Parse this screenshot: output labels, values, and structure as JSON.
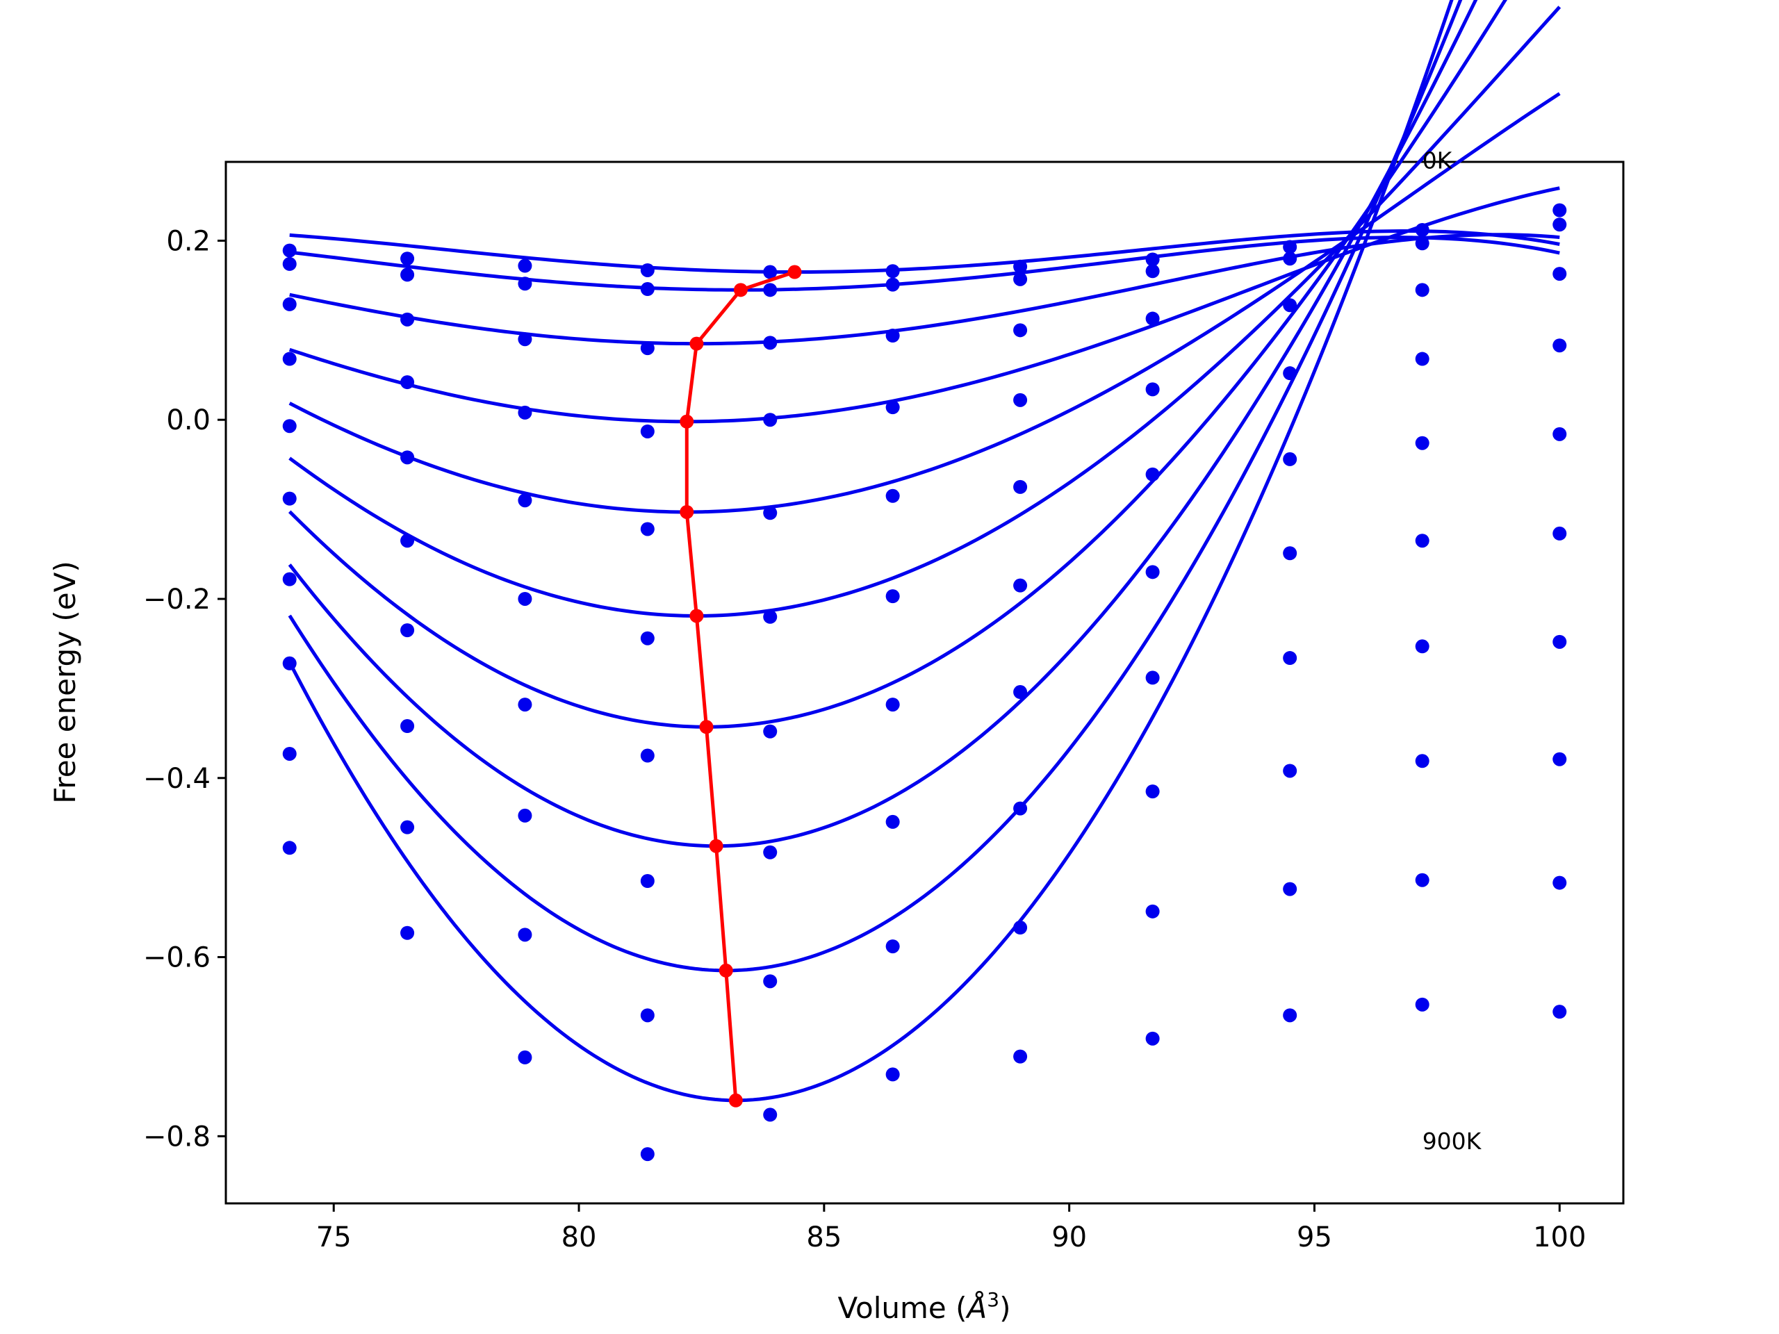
{
  "chart_data": {
    "type": "line",
    "title": "",
    "xlabel": "Volume (",
    "xlabel_unit": "Å",
    "xlabel_sup": "3",
    "xlabel_close": ")",
    "ylabel": "Free energy (eV)",
    "xlim": [
      72.8,
      101.3
    ],
    "ylim": [
      -0.875,
      0.288
    ],
    "xticks": [
      75,
      80,
      85,
      90,
      95,
      100
    ],
    "yticks": [
      0.2,
      0.0,
      -0.2,
      -0.4,
      -0.6,
      -0.8
    ],
    "xtick_labels": [
      "75",
      "80",
      "85",
      "90",
      "95",
      "100"
    ],
    "ytick_labels": [
      "0.2",
      "0.0",
      "−0.2",
      "−0.4",
      "−0.6",
      "−0.8"
    ],
    "annotations": [
      {
        "text": "0K",
        "x": 97.2,
        "y": 0.29
      },
      {
        "text": "900K",
        "x": 97.2,
        "y": -0.805
      }
    ],
    "grid": false,
    "legend": "none",
    "series_color": "#0000ee",
    "min_color": "#ff0000",
    "volumes": [
      74.1,
      76.5,
      78.9,
      81.4,
      83.9,
      86.4,
      89.0,
      91.7,
      94.5,
      97.2,
      100.0
    ],
    "series": [
      {
        "points": [
          0.189,
          0.18,
          0.172,
          0.167,
          0.165,
          0.166,
          0.171,
          0.179,
          0.193,
          0.212,
          0.234
        ],
        "fit": {
          "vmin": 84.4,
          "fmin": 0.165,
          "a": 0.00059,
          "b": 1.9e-06
        }
      },
      {
        "points": [
          0.174,
          0.162,
          0.152,
          0.146,
          0.145,
          0.151,
          0.157,
          0.166,
          0.18,
          0.197,
          0.218
        ],
        "fit": {
          "vmin": 83.3,
          "fmin": 0.145,
          "a": 0.00065,
          "b": 1.8e-06
        }
      },
      {
        "points": [
          0.129,
          0.112,
          0.09,
          0.08,
          0.086,
          0.094,
          0.1,
          0.113,
          0.128,
          0.145,
          0.163
        ],
        "fit": {
          "vmin": 82.4,
          "fmin": 0.085,
          "a": 0.00091,
          "b": 1.7e-06
        }
      },
      {
        "points": [
          0.068,
          0.042,
          0.008,
          -0.013,
          0.0,
          0.014,
          0.022,
          0.034,
          0.052,
          0.068,
          0.083
        ],
        "fit": {
          "vmin": 82.2,
          "fmin": -0.002,
          "a": 0.00133,
          "b": 1.6e-06
        }
      },
      {
        "points": [
          -0.007,
          -0.042,
          -0.09,
          -0.122,
          -0.104,
          -0.085,
          -0.075,
          -0.061,
          -0.044,
          -0.026,
          -0.016
        ],
        "fit": {
          "vmin": 82.2,
          "fmin": -0.103,
          "a": 0.00195,
          "b": 1.5e-06
        }
      },
      {
        "points": [
          -0.088,
          -0.135,
          -0.2,
          -0.244,
          -0.22,
          -0.197,
          -0.185,
          -0.17,
          -0.149,
          -0.135,
          -0.127
        ],
        "fit": {
          "vmin": 82.4,
          "fmin": -0.219,
          "a": 0.00266,
          "b": 1.5e-06
        }
      },
      {
        "points": [
          -0.178,
          -0.235,
          -0.318,
          -0.375,
          -0.348,
          -0.318,
          -0.304,
          -0.288,
          -0.266,
          -0.253,
          -0.248
        ],
        "fit": {
          "vmin": 82.6,
          "fmin": -0.343,
          "a": 0.00343,
          "b": 1.4e-06
        }
      },
      {
        "points": [
          -0.272,
          -0.342,
          -0.442,
          -0.515,
          -0.483,
          -0.449,
          -0.434,
          -0.415,
          -0.392,
          -0.381,
          -0.379
        ],
        "fit": {
          "vmin": 82.8,
          "fmin": -0.476,
          "a": 0.00425,
          "b": 1.3e-06
        }
      },
      {
        "points": [
          -0.373,
          -0.455,
          -0.575,
          -0.665,
          -0.627,
          -0.588,
          -0.567,
          -0.549,
          -0.524,
          -0.514,
          -0.517
        ],
        "fit": {
          "vmin": 83.0,
          "fmin": -0.615,
          "a": 0.0051,
          "b": 1.2e-06
        }
      },
      {
        "points": [
          -0.478,
          -0.573,
          -0.712,
          -0.82,
          -0.776,
          -0.731,
          -0.711,
          -0.691,
          -0.665,
          -0.653,
          -0.661
        ],
        "fit": {
          "vmin": 83.2,
          "fmin": -0.76,
          "a": 0.006,
          "b": 1.1e-06
        }
      }
    ],
    "minima_path": {
      "x": [
        84.4,
        83.3,
        82.4,
        82.2,
        82.2,
        82.4,
        82.6,
        82.8,
        83.0,
        83.2
      ],
      "y": [
        0.165,
        0.145,
        0.085,
        -0.002,
        -0.103,
        -0.219,
        -0.343,
        -0.476,
        -0.615,
        -0.76
      ]
    }
  }
}
